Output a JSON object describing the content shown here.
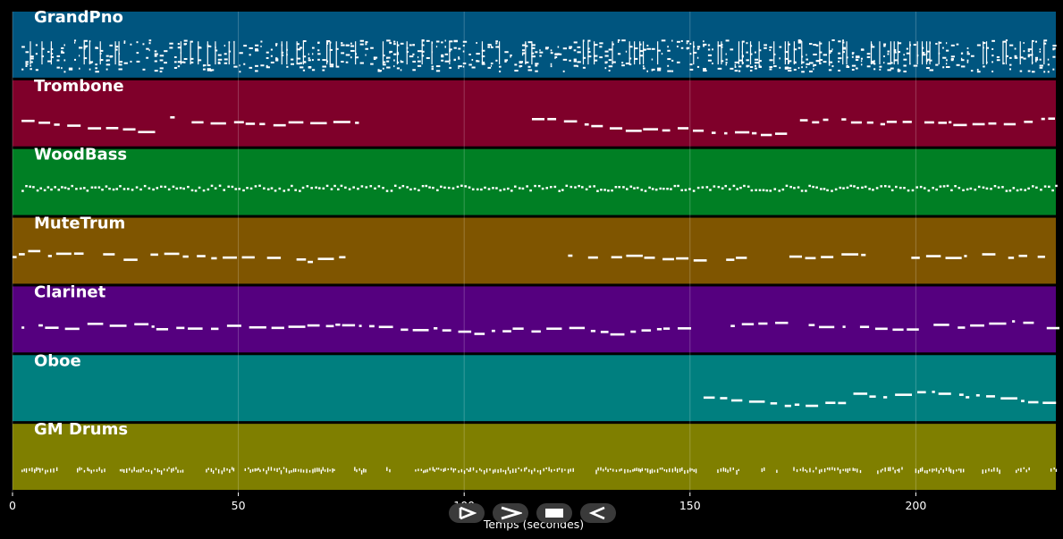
{
  "chart_data": {
    "type": "piano-roll",
    "xlabel": "Temps (secondes)",
    "xlim": [
      0,
      231
    ],
    "xticks": [
      0,
      50,
      100,
      150,
      200
    ],
    "grid": true,
    "tracks": [
      {
        "name": "GrandPno",
        "color": "#00557f",
        "style": "dense-chords",
        "segments": [
          [
            2,
            40
          ],
          [
            41,
            231
          ]
        ]
      },
      {
        "name": "Trombone",
        "color": "#7f002a",
        "style": "phrases",
        "segments": [
          [
            2,
            77
          ],
          [
            115,
            231
          ]
        ]
      },
      {
        "name": "WoodBass",
        "color": "#007f24",
        "style": "walking",
        "segments": [
          [
            2,
            231
          ]
        ]
      },
      {
        "name": "MuteTrum",
        "color": "#7f5500",
        "style": "phrases",
        "segments": [
          [
            0,
            77
          ],
          [
            123,
            152
          ],
          [
            158,
            161
          ],
          [
            172,
            189
          ],
          [
            199,
            231
          ]
        ]
      },
      {
        "name": "Clarinet",
        "color": "#55007f",
        "style": "phrases",
        "segments": [
          [
            2,
            151
          ],
          [
            159,
            231
          ]
        ]
      },
      {
        "name": "Oboe",
        "color": "#007f7f",
        "style": "phrases",
        "segments": [
          [
            153,
            231
          ]
        ]
      },
      {
        "name": "GM Drums",
        "color": "#7f7f00",
        "style": "hits",
        "segments": [
          [
            2,
            231
          ]
        ]
      }
    ]
  },
  "controls": [
    {
      "name": "play-outline-button",
      "icon": "play-outline-icon"
    },
    {
      "name": "next-button",
      "icon": "chevron-right-icon"
    },
    {
      "name": "stop-button",
      "icon": "stop-icon"
    },
    {
      "name": "rewind-button",
      "icon": "play-reverse-icon"
    }
  ]
}
